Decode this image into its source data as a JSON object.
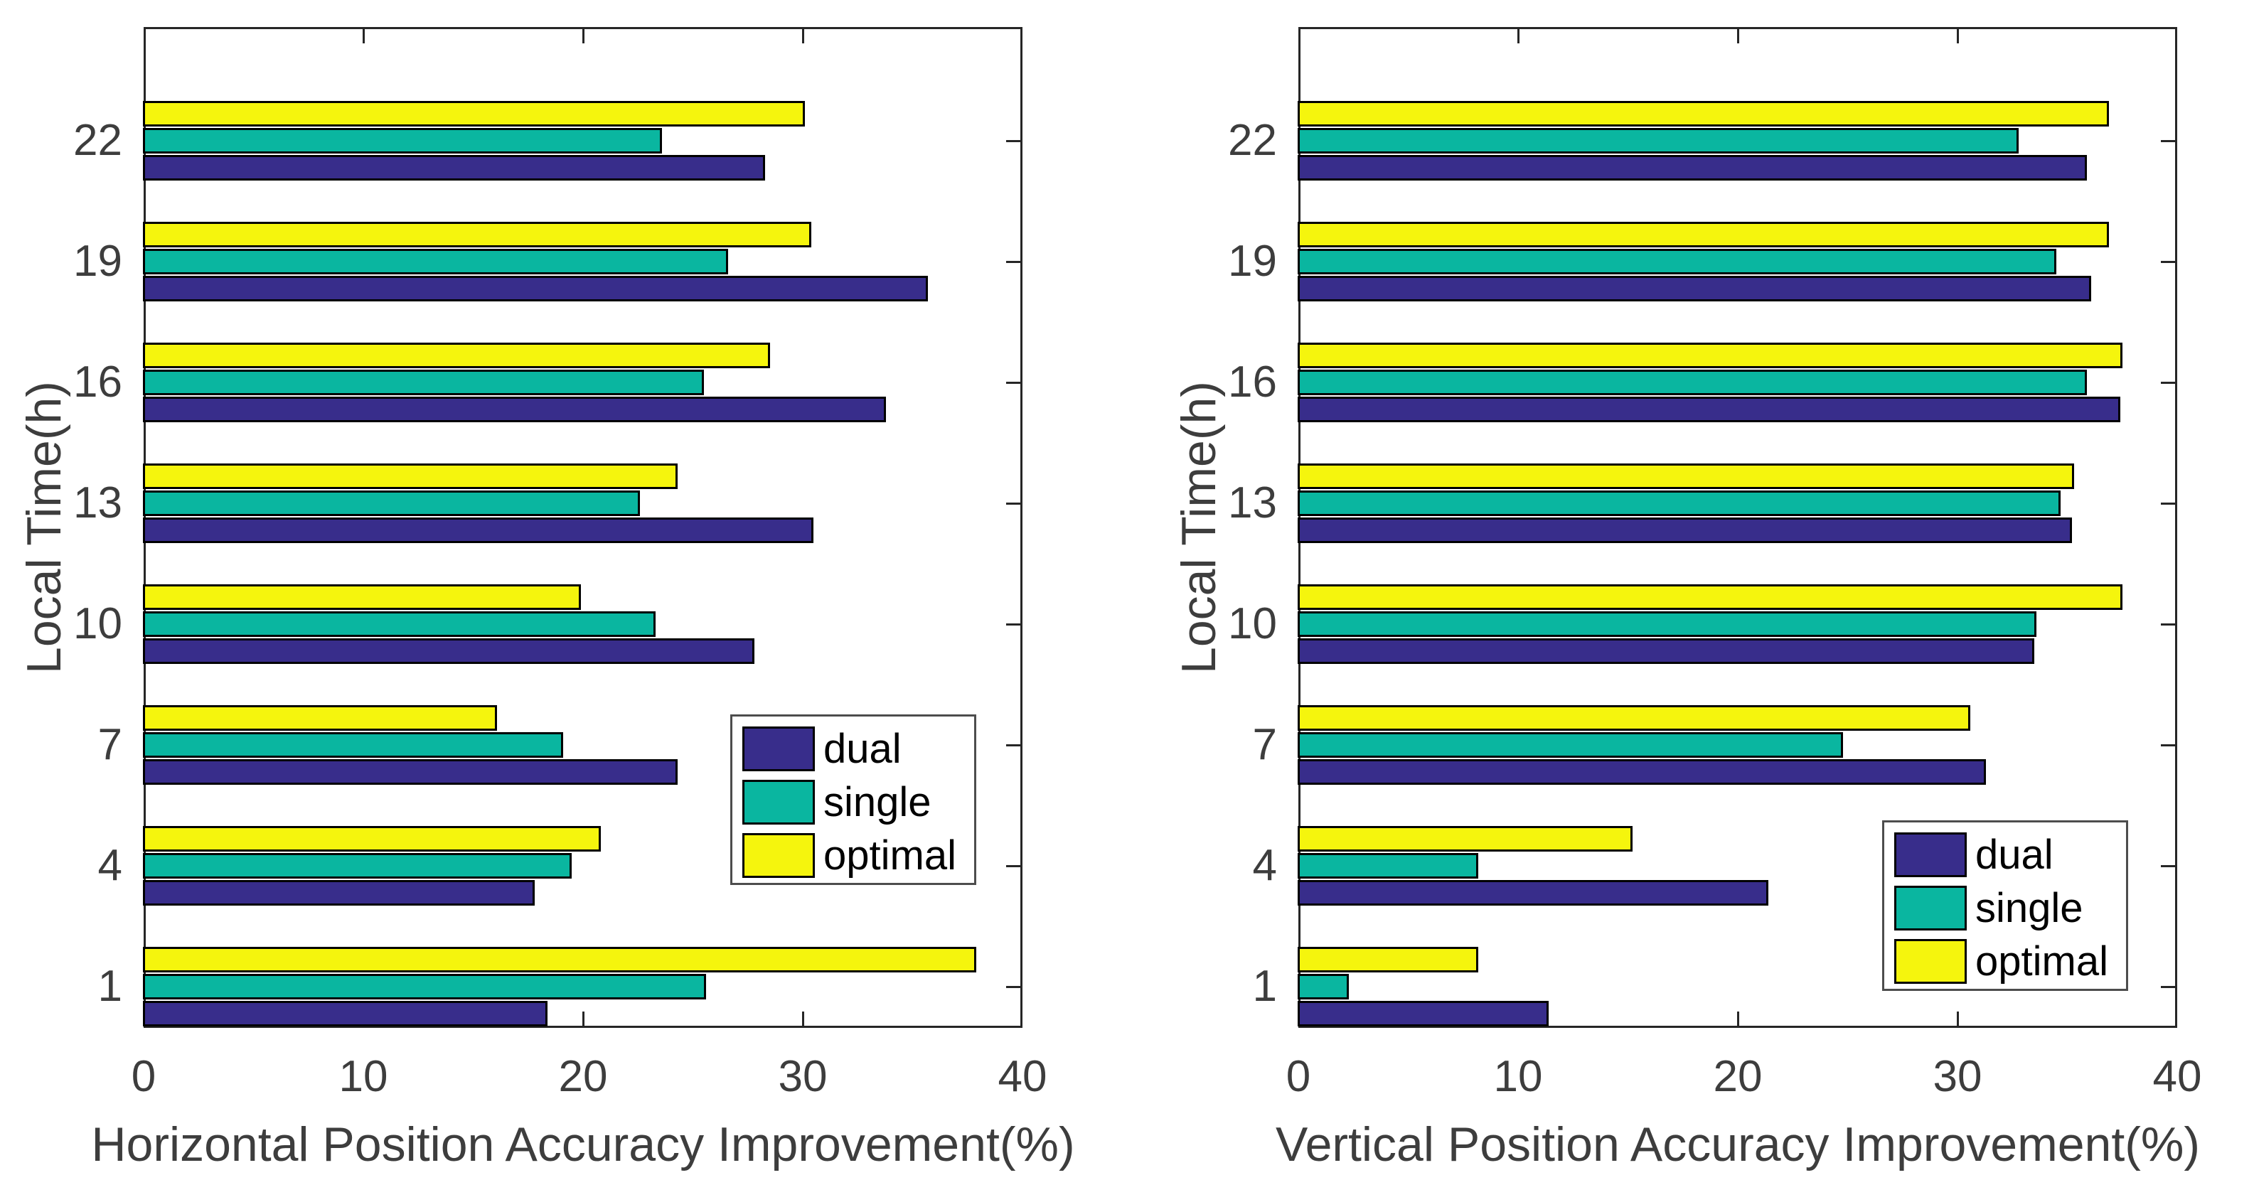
{
  "figure": {
    "background": "#ffffff",
    "axis_color": "#262626",
    "tick_label_color": "#3d3d3d",
    "bar_edge_color": "#000000"
  },
  "series_colors": {
    "dual": "#382D8B",
    "single": "#0AB6A0",
    "optimal": "#F5F50D"
  },
  "legend": {
    "entries": [
      "dual",
      "single",
      "optimal"
    ]
  },
  "chart_data": [
    {
      "type": "bar",
      "orientation": "horizontal",
      "title": "",
      "xlabel": "Horizontal Position Accuracy Improvement(%)",
      "ylabel": "Local Time(h)",
      "xlim": [
        0,
        40
      ],
      "xticks": [
        0,
        10,
        20,
        30,
        40
      ],
      "grid": false,
      "legend_position": "inside-right-middle",
      "categories": [
        1,
        4,
        7,
        10,
        13,
        16,
        19,
        22
      ],
      "series": [
        {
          "name": "dual",
          "values": [
            18.3,
            17.7,
            24.2,
            27.7,
            30.4,
            33.7,
            35.6,
            28.2
          ]
        },
        {
          "name": "single",
          "values": [
            25.5,
            19.4,
            19.0,
            23.2,
            22.5,
            25.4,
            26.5,
            23.5
          ]
        },
        {
          "name": "optimal",
          "values": [
            37.8,
            20.7,
            16.0,
            19.8,
            24.2,
            28.4,
            30.3,
            30.0
          ]
        }
      ]
    },
    {
      "type": "bar",
      "orientation": "horizontal",
      "title": "",
      "xlabel": "Vertical Position Accuracy Improvement(%)",
      "ylabel": "Local Time(h)",
      "xlim": [
        0,
        40
      ],
      "xticks": [
        0,
        10,
        20,
        30,
        40
      ],
      "grid": false,
      "legend_position": "inside-right-bottom",
      "categories": [
        1,
        4,
        7,
        10,
        13,
        16,
        19,
        22
      ],
      "series": [
        {
          "name": "dual",
          "values": [
            11.3,
            21.3,
            31.2,
            33.4,
            35.1,
            37.3,
            36.0,
            35.8
          ]
        },
        {
          "name": "single",
          "values": [
            2.2,
            8.1,
            24.7,
            33.5,
            34.6,
            35.8,
            34.4,
            32.7
          ]
        },
        {
          "name": "optimal",
          "values": [
            8.1,
            15.1,
            30.5,
            37.4,
            35.2,
            37.4,
            36.8,
            36.8
          ]
        }
      ]
    }
  ]
}
